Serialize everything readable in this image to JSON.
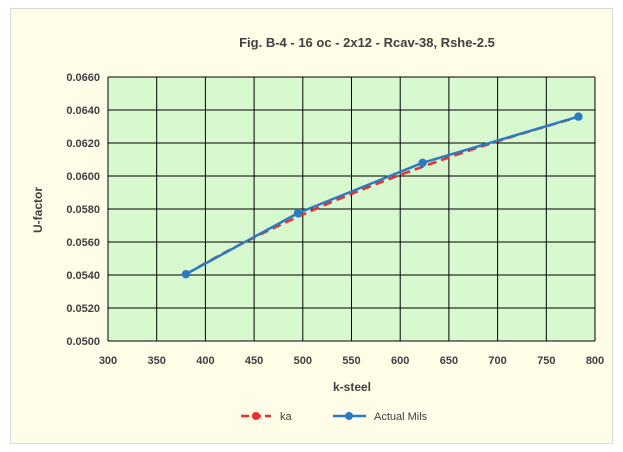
{
  "colors": {
    "chart_background": "#FFFDE7",
    "plot_background": "#D8F8D0",
    "grid": "#000000",
    "series_ka": "#E8302F",
    "series_actual": "#2B7BC4"
  },
  "chart_data": {
    "type": "line",
    "title": "Fig. B-4 - 16 oc - 2x12 - Rcav-38, Rshe-2.5",
    "xlabel": "k-steel",
    "ylabel": "U-factor",
    "xlim": [
      300,
      800
    ],
    "ylim": [
      0.05,
      0.066
    ],
    "x_ticks": [
      "300",
      "350",
      "400",
      "450",
      "500",
      "550",
      "600",
      "650",
      "700",
      "750",
      "800"
    ],
    "y_ticks": [
      "0.0500",
      "0.0520",
      "0.0540",
      "0.0560",
      "0.0580",
      "0.0600",
      "0.0620",
      "0.0640",
      "0.0660"
    ],
    "grid": true,
    "legend_position": "bottom",
    "series": [
      {
        "name": "ka",
        "style": "dashed",
        "x": [
          380,
          400,
          420,
          440,
          460,
          480,
          500,
          520,
          540,
          560,
          580,
          600,
          620,
          640,
          660,
          680,
          700,
          720,
          740,
          760,
          783
        ],
        "y": [
          0.05405,
          0.05472,
          0.05537,
          0.05598,
          0.05656,
          0.05712,
          0.05766,
          0.05818,
          0.05868,
          0.05916,
          0.05962,
          0.06007,
          0.0605,
          0.06092,
          0.06133,
          0.06172,
          0.0621,
          0.06247,
          0.06283,
          0.06318,
          0.06357
        ]
      },
      {
        "name": "Actual Mils",
        "style": "solid",
        "x": [
          380,
          495,
          623,
          783
        ],
        "y": [
          0.05405,
          0.05775,
          0.0608,
          0.0636
        ]
      }
    ]
  }
}
